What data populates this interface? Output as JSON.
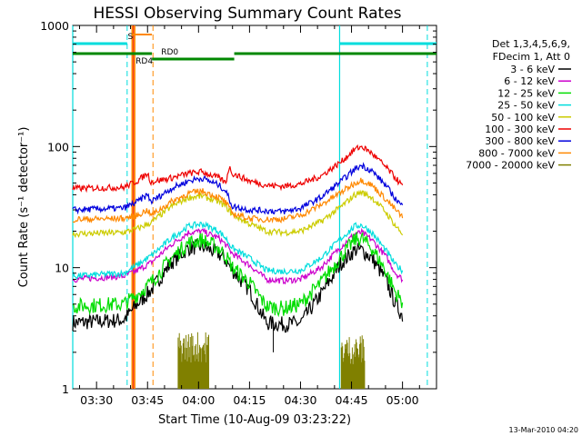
{
  "chart_data": {
    "type": "line",
    "title": "HESSI Observing Summary Count Rates",
    "xlabel": "Start Time (10-Aug-09 03:23:22)",
    "ylabel": "Count Rate (s⁻¹ detector⁻¹)",
    "y_scale": "log",
    "ylim": [
      1,
      1000
    ],
    "xlim_minutes": [
      -7,
      100
    ],
    "x_tick_labels": [
      "03:30",
      "03:45",
      "04:00",
      "04:15",
      "04:30",
      "04:45",
      "05:00"
    ],
    "x_tick_minutes": [
      0,
      15,
      30,
      45,
      60,
      75,
      90
    ],
    "y_tick_labels": [
      "1",
      "10",
      "100",
      "1000"
    ],
    "y_tick_values": [
      1,
      10,
      100,
      1000
    ],
    "legend_header": [
      "Det 1,3,4,5,6,9,",
      "FDecim 1, Att 0"
    ],
    "legend_position": "right",
    "footer_date": "13-Mar-2010 04:20",
    "series": [
      {
        "name": "3 - 6 keV",
        "color": "#000000",
        "x": [
          -7,
          8,
          12,
          16,
          22,
          27,
          31,
          36,
          38,
          40,
          45,
          50,
          55,
          60,
          66,
          72,
          76,
          78,
          81,
          85,
          88,
          90
        ],
        "y": [
          3.5,
          3.7,
          5.0,
          6.5,
          11,
          14.5,
          15,
          13,
          11.5,
          9.5,
          6.5,
          3.5,
          3.4,
          3.5,
          6,
          11,
          14,
          14,
          12,
          8,
          5,
          4
        ]
      },
      {
        "name": "6 - 12 keV",
        "color": "#cc00cc",
        "x": [
          -7,
          8,
          12,
          16,
          22,
          27,
          31,
          36,
          38,
          40,
          45,
          50,
          55,
          60,
          66,
          72,
          76,
          78,
          81,
          85,
          88,
          90
        ],
        "y": [
          8,
          8.5,
          9.5,
          11,
          15.5,
          19.5,
          20,
          17.5,
          15.5,
          13,
          10.5,
          8,
          7.8,
          8,
          10,
          15,
          19,
          19.5,
          17,
          12.5,
          9,
          8
        ]
      },
      {
        "name": "12 - 25 keV",
        "color": "#00dd00",
        "x": [
          -7,
          8,
          12,
          16,
          22,
          27,
          31,
          36,
          38,
          40,
          45,
          50,
          55,
          60,
          66,
          72,
          76,
          78,
          81,
          85,
          88,
          90
        ],
        "y": [
          4.8,
          5,
          6,
          7.5,
          12,
          16,
          17,
          14.5,
          12.5,
          10,
          7.5,
          4.8,
          4.6,
          5,
          7.5,
          12.5,
          17,
          17.5,
          14.5,
          9.5,
          6.2,
          5.2
        ]
      },
      {
        "name": "25 - 50 keV",
        "color": "#00dddd",
        "x": [
          -7,
          8,
          12,
          16,
          22,
          27,
          31,
          36,
          38,
          40,
          45,
          50,
          55,
          60,
          66,
          72,
          76,
          78,
          81,
          85,
          88,
          90
        ],
        "y": [
          8.5,
          9,
          10.5,
          12.5,
          17.5,
          22,
          23,
          20,
          17.5,
          14.5,
          12,
          9.5,
          9.3,
          9.5,
          12,
          17.5,
          22,
          22.5,
          19.5,
          14,
          10.5,
          9.5
        ]
      },
      {
        "name": "50 - 100 keV",
        "color": "#cccc00",
        "x": [
          -7,
          8,
          12,
          16,
          22,
          27,
          31,
          36,
          38,
          40,
          45,
          50,
          55,
          60,
          66,
          72,
          76,
          78,
          81,
          85,
          88,
          90
        ],
        "y": [
          19,
          19.5,
          21,
          23.5,
          32,
          38,
          39,
          35,
          32,
          27.5,
          23,
          20,
          19.5,
          20,
          24,
          32,
          40,
          42,
          38,
          29,
          22,
          19
        ]
      },
      {
        "name": "100 - 300 keV",
        "color": "#ee0000",
        "x": [
          -7,
          8,
          12,
          15,
          16,
          22,
          27,
          31,
          36,
          38,
          39,
          40,
          45,
          50,
          55,
          60,
          66,
          72,
          76,
          78,
          81,
          85,
          88,
          90
        ],
        "y": [
          45,
          46,
          52,
          60,
          51,
          55,
          60,
          62,
          55,
          50,
          68,
          60,
          52,
          48,
          47,
          49,
          57,
          75,
          95,
          100,
          88,
          68,
          55,
          47
        ]
      },
      {
        "name": "300 - 800 keV",
        "color": "#0000dd",
        "x": [
          -7,
          8,
          12,
          15,
          16,
          22,
          27,
          31,
          36,
          38,
          40,
          45,
          50,
          55,
          60,
          66,
          72,
          76,
          78,
          81,
          85,
          88,
          90
        ],
        "y": [
          30,
          31,
          35,
          40,
          35,
          45,
          52,
          55,
          48,
          43,
          32,
          30,
          29.5,
          29,
          31,
          38,
          52,
          65,
          70,
          63,
          48,
          37,
          32
        ]
      },
      {
        "name": "800 - 7000 keV",
        "color": "#ff8800",
        "x": [
          -7,
          8,
          12,
          15,
          16,
          22,
          27,
          31,
          36,
          38,
          40,
          45,
          50,
          55,
          60,
          66,
          72,
          76,
          78,
          81,
          85,
          88,
          90
        ],
        "y": [
          25,
          25.5,
          27,
          30,
          27,
          35,
          41,
          43,
          38,
          34.5,
          28,
          25.5,
          25,
          25.2,
          27,
          33,
          42,
          50,
          53,
          48,
          37,
          30,
          26
        ]
      },
      {
        "name": "7000 - 20000 keV",
        "color": "#808000",
        "bursts": [
          {
            "x_range": [
              24,
              33
            ],
            "y_range": [
              1,
              3
            ]
          },
          {
            "x_range": [
              72,
              79
            ],
            "y_range": [
              1,
              2.8
            ]
          }
        ]
      }
    ],
    "annotations": {
      "flag_labels": [
        {
          "text": "S",
          "color": "#ff8800"
        },
        {
          "text": "RD0",
          "color": "#006600"
        },
        {
          "text": "RD4",
          "color": "#006600"
        }
      ],
      "vertical_lines_minutes": {
        "cyan_solid": [
          -7,
          71.5
        ],
        "cyan_dashed": [
          9,
          97.3
        ],
        "orange_solid": [
          10.5,
          11.2
        ],
        "orange_dashed": [
          16.6
        ]
      }
    }
  }
}
